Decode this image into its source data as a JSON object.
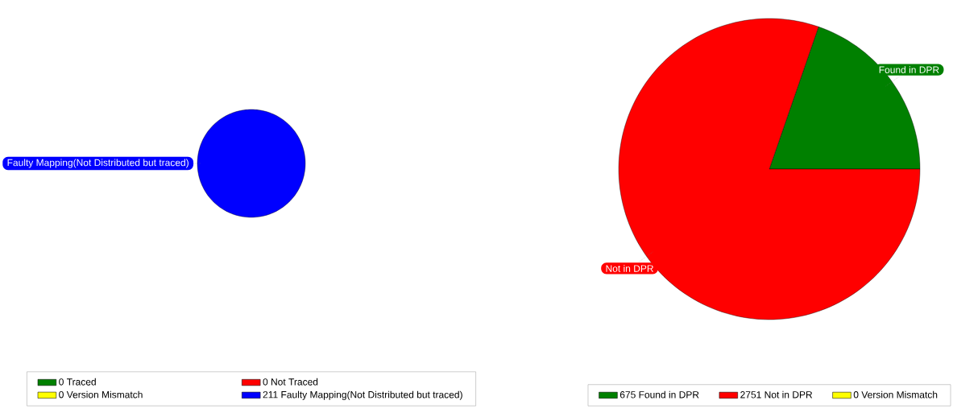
{
  "chart_data": [
    {
      "type": "pie",
      "categories": [
        "0 Traced",
        "0 Not Traced",
        "0 Version Mismatch",
        "211 Faulty Mapping(Not Distributed but traced)"
      ],
      "values": [
        0,
        0,
        0,
        211
      ],
      "colors": [
        "#008000",
        "#ff0000",
        "#ffff00",
        "#0000ff"
      ],
      "legend": "bottom",
      "annotations": [
        "Faulty Mapping(Not Distributed but traced)"
      ]
    },
    {
      "type": "pie",
      "categories": [
        "675 Found in DPR",
        "2751 Not in DPR",
        "0 Version Mismatch"
      ],
      "values": [
        675,
        2751,
        0
      ],
      "colors": [
        "#008000",
        "#ff0000",
        "#ffff00"
      ],
      "legend": "bottom",
      "annotations": [
        "Found in DPR",
        "Not in DPR"
      ]
    }
  ]
}
